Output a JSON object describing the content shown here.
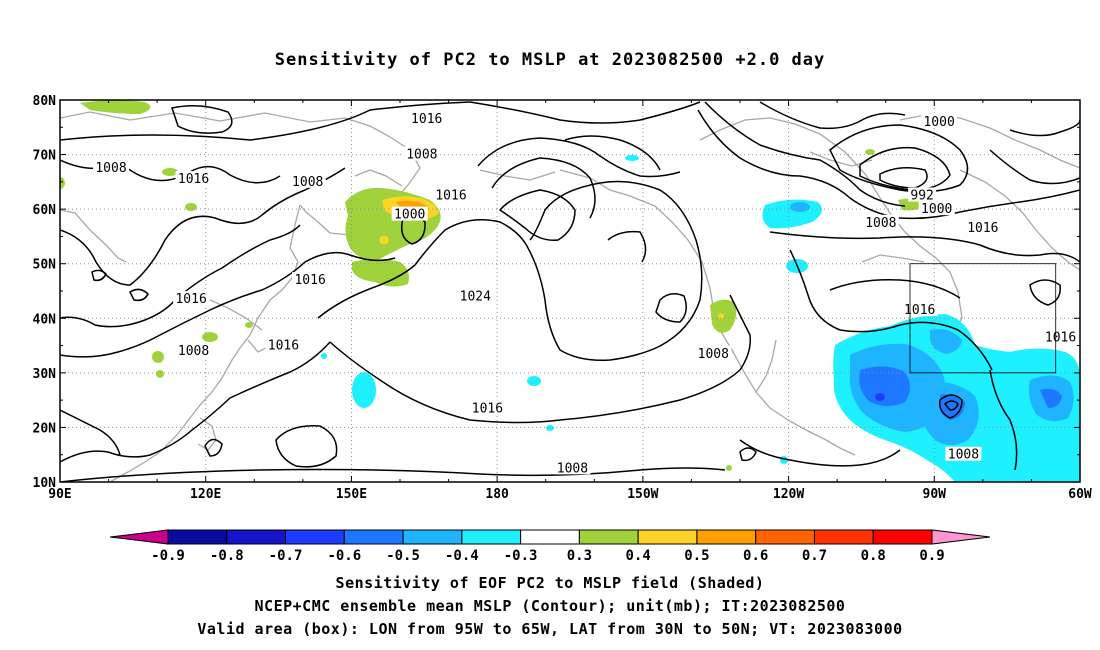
{
  "title": "Sensitivity of PC2 to MSLP at 2023082500 +2.0 day",
  "map": {
    "lat_labels": [
      "80N",
      "70N",
      "60N",
      "50N",
      "40N",
      "30N",
      "20N",
      "10N"
    ],
    "lon_labels": [
      "90E",
      "120E",
      "150E",
      "180",
      "150W",
      "120W",
      "90W",
      "60W"
    ],
    "extent": {
      "lon_min_east": 90,
      "lon_max_east": 300,
      "lat_min": 10,
      "lat_max": 80
    },
    "contour_labels": [
      {
        "text": "1016",
        "lon": 165.5,
        "lat": 76.5
      },
      {
        "text": "1008",
        "lon": 164.5,
        "lat": 70.0
      },
      {
        "text": "1008",
        "lon": 100.5,
        "lat": 67.5
      },
      {
        "text": "1016",
        "lon": 117.5,
        "lat": 65.5
      },
      {
        "text": "1008",
        "lon": 141.0,
        "lat": 65.0
      },
      {
        "text": "1016",
        "lon": 170.5,
        "lat": 62.5
      },
      {
        "text": "1000",
        "lon": 162.0,
        "lat": 59.0
      },
      {
        "text": "1016",
        "lon": 117.0,
        "lat": 43.5
      },
      {
        "text": "1016",
        "lon": 141.5,
        "lat": 47.0
      },
      {
        "text": "1024",
        "lon": 175.5,
        "lat": 44.0
      },
      {
        "text": "1016",
        "lon": 136.0,
        "lat": 35.0
      },
      {
        "text": "1008",
        "lon": 117.5,
        "lat": 34.0
      },
      {
        "text": "1008",
        "lon": 224.5,
        "lat": 33.5
      },
      {
        "text": "1016",
        "lon": 178.0,
        "lat": 23.5
      },
      {
        "text": "1008",
        "lon": 195.5,
        "lat": 12.5
      },
      {
        "text": "1008",
        "lon": 276.0,
        "lat": 15.0
      },
      {
        "text": "1000",
        "lon": 271.0,
        "lat": 76.0
      },
      {
        "text": "992",
        "lon": 267.5,
        "lat": 62.5
      },
      {
        "text": "1000",
        "lon": 270.5,
        "lat": 60.0
      },
      {
        "text": "1008",
        "lon": 259.0,
        "lat": 57.5
      },
      {
        "text": "1016",
        "lon": 280.0,
        "lat": 56.5
      },
      {
        "text": "1016",
        "lon": 267.0,
        "lat": 41.5
      },
      {
        "text": "1016",
        "lon": 296.0,
        "lat": 36.5
      }
    ],
    "valid_box": {
      "lon_west": 95,
      "lon_east": 65,
      "lat_south": 30,
      "lat_north": 50
    }
  },
  "colorbar": {
    "ticks": [
      "-0.9",
      "-0.8",
      "-0.7",
      "-0.6",
      "-0.5",
      "-0.4",
      "-0.3",
      "0.3",
      "0.4",
      "0.5",
      "0.6",
      "0.7",
      "0.8",
      "0.9"
    ],
    "colors": [
      "#c8008c",
      "#0a0aa0",
      "#1414c8",
      "#1e3cff",
      "#1e78ff",
      "#1eb4ff",
      "#1ef0ff",
      "#ffffff",
      "#a0d23c",
      "#ffd228",
      "#ffa000",
      "#ff6400",
      "#ff3200",
      "#ff0000",
      "#ff96d2"
    ]
  },
  "captions": {
    "line1": "Sensitivity of EOF PC2 to MSLP field (Shaded)",
    "line2": "NCEP+CMC ensemble mean MSLP (Contour); unit(mb); IT:2023082500",
    "line3": "Valid area (box): LON from 95W to 65W, LAT from 30N to 50N; VT: 2023083000"
  }
}
